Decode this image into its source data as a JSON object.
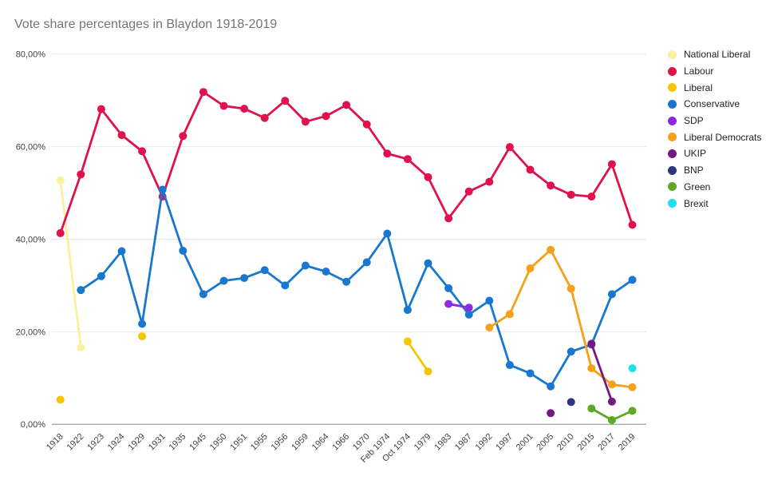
{
  "chart_data": {
    "type": "line",
    "title": "Vote share percentages in Blaydon 1918-2019",
    "xlabel": "",
    "ylabel": "",
    "ylim": [
      0,
      80
    ],
    "grid": true,
    "legend_position": "right",
    "y_axis": {
      "ticks": [
        {
          "value": 0,
          "label": "0,00%"
        },
        {
          "value": 20,
          "label": "20,00%"
        },
        {
          "value": 40,
          "label": "40,00%"
        },
        {
          "value": 60,
          "label": "60,00%"
        },
        {
          "value": 80,
          "label": "80,00%"
        }
      ]
    },
    "categories": [
      "1918",
      "1922",
      "1923",
      "1924",
      "1929",
      "1931",
      "1935",
      "1945",
      "1950",
      "1951",
      "1955",
      "1956",
      "1959",
      "1964",
      "1966",
      "1970",
      "Feb 1974",
      "Oct 1974",
      "1979",
      "1983",
      "1987",
      "1992",
      "1997",
      "2001",
      "2005",
      "2010",
      "2015",
      "2017",
      "2019"
    ],
    "series": [
      {
        "name": "National Liberal",
        "color": "#faf0a0",
        "values": [
          52.7,
          16.6,
          null,
          null,
          null,
          null,
          null,
          null,
          null,
          null,
          null,
          null,
          null,
          null,
          null,
          null,
          null,
          null,
          null,
          null,
          null,
          null,
          null,
          null,
          null,
          null,
          null,
          null,
          null
        ]
      },
      {
        "name": "Labour",
        "color": "#e0124d",
        "values": [
          41.3,
          54,
          68.1,
          62.5,
          59,
          49.2,
          62.3,
          71.8,
          68.8,
          68.2,
          66.2,
          69.9,
          65.4,
          66.6,
          69,
          64.8,
          58.5,
          57.3,
          53.4,
          44.5,
          50.3,
          52.4,
          59.9,
          55,
          51.6,
          49.6,
          49.2,
          56.2,
          43.1
        ]
      },
      {
        "name": "Liberal",
        "color": "#f7c500",
        "values": [
          5.3,
          null,
          null,
          null,
          19,
          null,
          null,
          null,
          null,
          null,
          null,
          null,
          null,
          null,
          null,
          null,
          null,
          17.9,
          11.4,
          null,
          null,
          null,
          null,
          null,
          null,
          null,
          null,
          null,
          null
        ]
      },
      {
        "name": "Conservative",
        "color": "#1878cf",
        "values": [
          null,
          29,
          32,
          37.4,
          21.7,
          50.7,
          37.5,
          28.1,
          31,
          31.6,
          33.3,
          30,
          34.3,
          33,
          30.8,
          35,
          41.2,
          24.7,
          34.8,
          29.4,
          23.7,
          26.7,
          12.8,
          11,
          8.2,
          15.7,
          17.2,
          28.1,
          31.2
        ]
      },
      {
        "name": "SDP",
        "color": "#8a2be2",
        "values": [
          null,
          null,
          null,
          null,
          null,
          null,
          null,
          null,
          null,
          null,
          null,
          null,
          null,
          null,
          null,
          null,
          null,
          null,
          null,
          26,
          25.2,
          null,
          null,
          null,
          null,
          null,
          null,
          null,
          null
        ]
      },
      {
        "name": "Liberal Democrats",
        "color": "#f6a01b",
        "values": [
          null,
          null,
          null,
          null,
          null,
          null,
          null,
          null,
          null,
          null,
          null,
          null,
          null,
          null,
          null,
          null,
          null,
          null,
          null,
          null,
          null,
          20.9,
          23.8,
          33.7,
          37.7,
          29.3,
          12.1,
          8.6,
          8
        ]
      },
      {
        "name": "UKIP",
        "color": "#731982",
        "values": [
          null,
          null,
          null,
          null,
          null,
          null,
          null,
          null,
          null,
          null,
          null,
          null,
          null,
          null,
          null,
          null,
          null,
          null,
          null,
          null,
          null,
          null,
          null,
          null,
          2.4,
          null,
          17.4,
          4.9,
          null
        ]
      },
      {
        "name": "BNP",
        "color": "#2e3580",
        "values": [
          null,
          null,
          null,
          null,
          null,
          null,
          null,
          null,
          null,
          null,
          null,
          null,
          null,
          null,
          null,
          null,
          null,
          null,
          null,
          null,
          null,
          null,
          null,
          null,
          null,
          4.8,
          null,
          null,
          null
        ]
      },
      {
        "name": "Green",
        "color": "#5fa821",
        "values": [
          null,
          null,
          null,
          null,
          null,
          null,
          null,
          null,
          null,
          null,
          null,
          null,
          null,
          null,
          null,
          null,
          null,
          null,
          null,
          null,
          null,
          null,
          null,
          null,
          null,
          null,
          3.4,
          0.9,
          2.9
        ]
      },
      {
        "name": "Brexit",
        "color": "#20e0ea",
        "values": [
          null,
          null,
          null,
          null,
          null,
          null,
          null,
          null,
          null,
          null,
          null,
          null,
          null,
          null,
          null,
          null,
          null,
          null,
          null,
          null,
          null,
          null,
          null,
          null,
          null,
          null,
          null,
          null,
          12.1
        ]
      }
    ]
  }
}
